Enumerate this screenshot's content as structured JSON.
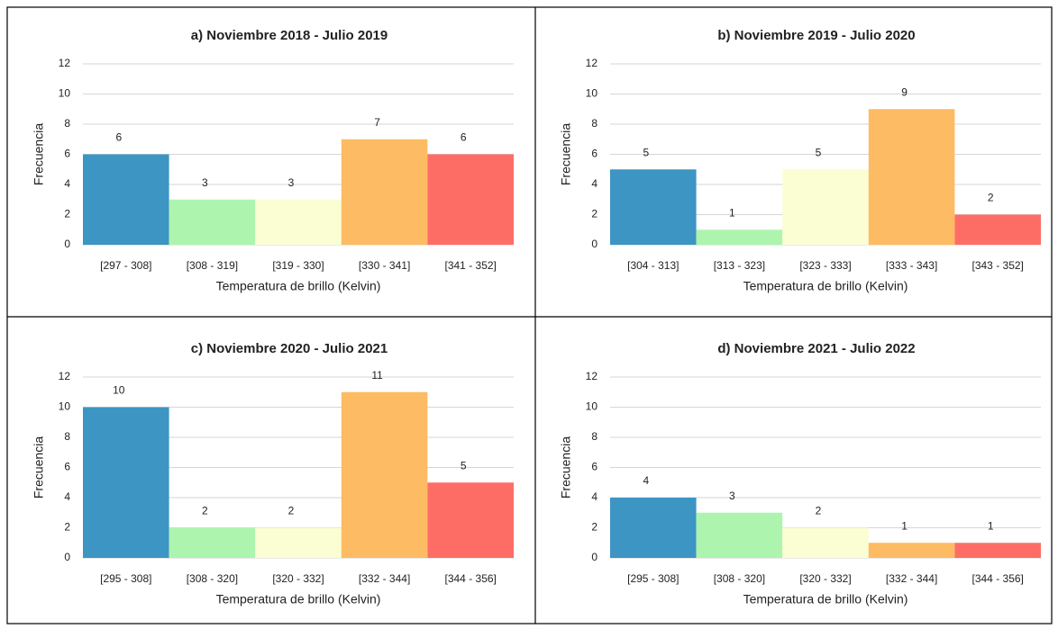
{
  "chart_data": [
    {
      "type": "bar",
      "title": "a) Noviembre 2018 - Julio 2019",
      "xlabel": "Temperatura de brillo (Kelvin)",
      "ylabel": "Frecuencia",
      "categories": [
        "[297 - 308]",
        "[308 - 319]",
        "[319 - 330]",
        "[330 - 341]",
        "[341 - 352]"
      ],
      "values": [
        6,
        3,
        3,
        7,
        6
      ],
      "colors": [
        "#3d95c4",
        "#adf5ae",
        "#fbfed2",
        "#fdbb63",
        "#fe6d65"
      ],
      "ylim": [
        0,
        12
      ],
      "yticks": [
        0,
        2,
        4,
        6,
        8,
        10,
        12
      ],
      "grid": true
    },
    {
      "type": "bar",
      "title": "b) Noviembre 2019 - Julio 2020",
      "xlabel": "Temperatura de brillo (Kelvin)",
      "ylabel": "Frecuencia",
      "categories": [
        "[304 - 313]",
        "[313 - 323]",
        "[323 - 333]",
        "[333 - 343]",
        "[343 - 352]"
      ],
      "values": [
        5,
        1,
        5,
        9,
        2
      ],
      "colors": [
        "#3d95c4",
        "#adf5ae",
        "#fbfed2",
        "#fdbb63",
        "#fe6d65"
      ],
      "ylim": [
        0,
        12
      ],
      "yticks": [
        0,
        2,
        4,
        6,
        8,
        10,
        12
      ],
      "grid": true
    },
    {
      "type": "bar",
      "title": "c) Noviembre 2020 - Julio 2021",
      "xlabel": "Temperatura de brillo (Kelvin)",
      "ylabel": "Frecuencia",
      "categories": [
        "[295 - 308]",
        "[308 - 320]",
        "[320 - 332]",
        "[332 - 344]",
        "[344 - 356]"
      ],
      "values": [
        10,
        2,
        2,
        11,
        5
      ],
      "colors": [
        "#3d95c4",
        "#adf5ae",
        "#fbfed2",
        "#fdbb63",
        "#fe6d65"
      ],
      "ylim": [
        0,
        12
      ],
      "yticks": [
        0,
        2,
        4,
        6,
        8,
        10,
        12
      ],
      "grid": true
    },
    {
      "type": "bar",
      "title": "d) Noviembre 2021 - Julio 2022",
      "xlabel": "Temperatura de brillo (Kelvin)",
      "ylabel": "Frecuencia",
      "categories": [
        "[295 - 308]",
        "[308 - 320]",
        "[320 - 332]",
        "[332 - 344]",
        "[344 - 356]"
      ],
      "values": [
        4,
        3,
        2,
        1,
        1
      ],
      "colors": [
        "#3d95c4",
        "#adf5ae",
        "#fbfed2",
        "#fdbb63",
        "#fe6d65"
      ],
      "ylim": [
        0,
        12
      ],
      "yticks": [
        0,
        2,
        4,
        6,
        8,
        10,
        12
      ],
      "grid": true
    }
  ]
}
